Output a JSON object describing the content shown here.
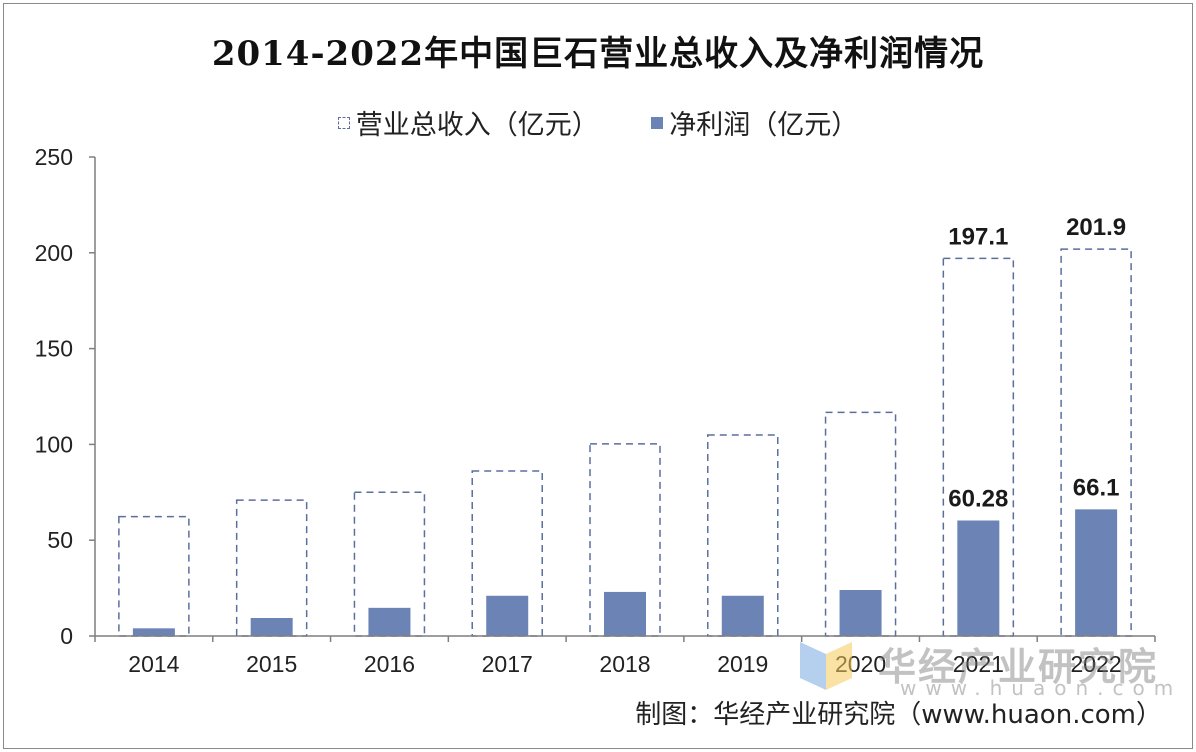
{
  "colors": {
    "revenue_border": "#5a6f9e",
    "profit_fill": "#6b83b5",
    "axis": "#7f7f7f"
  },
  "chart_data": {
    "type": "bar",
    "title": "2014-2022年中国巨石营业总收入及净利润情况",
    "categories": [
      "2014",
      "2015",
      "2016",
      "2017",
      "2018",
      "2019",
      "2020",
      "2021",
      "2022"
    ],
    "series": [
      {
        "name": "营业总收入（亿元）",
        "style": "dashed-outline",
        "values": [
          62.3,
          70.9,
          75.0,
          86.1,
          100.3,
          104.9,
          116.7,
          197.1,
          201.9
        ]
      },
      {
        "name": "净利润（亿元）",
        "style": "filled",
        "values": [
          4.0,
          9.4,
          14.7,
          21.0,
          23.0,
          21.0,
          24.0,
          60.28,
          66.1
        ]
      }
    ],
    "data_labels": [
      {
        "series": 0,
        "index": 7,
        "text": "197.1"
      },
      {
        "series": 0,
        "index": 8,
        "text": "201.9"
      },
      {
        "series": 1,
        "index": 7,
        "text": "60.28"
      },
      {
        "series": 1,
        "index": 8,
        "text": "66.1"
      }
    ],
    "y_ticks": [
      "0",
      "50",
      "100",
      "150",
      "200",
      "250"
    ],
    "ylim": [
      0,
      250
    ],
    "xlabel": "",
    "ylabel": "",
    "legend_position": "top-center",
    "grid": false
  },
  "watermark": {
    "text": "华经产业研究院",
    "url": "www.huaon.com"
  },
  "source": "制图：华经产业研究院（www.huaon.com）"
}
